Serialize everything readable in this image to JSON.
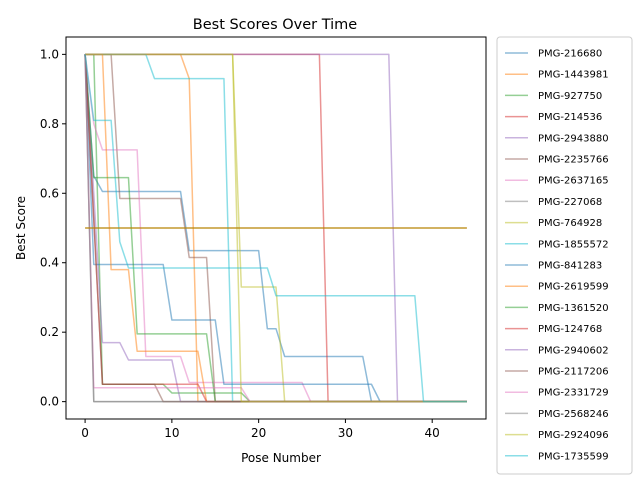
{
  "chart_data": {
    "type": "line",
    "title": "Best Scores Over Time",
    "xlabel": "Pose Number",
    "ylabel": "Best Score",
    "xlim": [
      -2.2,
      46.2
    ],
    "ylim": [
      -0.05,
      1.05
    ],
    "xticks": [
      0,
      10,
      20,
      30,
      40
    ],
    "yticks": [
      0.0,
      0.2,
      0.4,
      0.6,
      0.8,
      1.0
    ],
    "xtick_labels": [
      "0",
      "10",
      "20",
      "30",
      "40"
    ],
    "ytick_labels": [
      "0.0",
      "0.2",
      "0.4",
      "0.6",
      "0.8",
      "1.0"
    ],
    "grid": false,
    "legend_position": "outside-right",
    "reference_line": {
      "y": 0.5,
      "x_range": [
        0,
        44
      ],
      "color": "#b8860b"
    },
    "series": [
      {
        "name": "PMG-216680",
        "color": "#1f77b4",
        "points": [
          [
            0,
            1.0
          ],
          [
            1,
            0.65
          ],
          [
            2,
            0.605
          ],
          [
            11,
            0.605
          ],
          [
            12,
            0.435
          ],
          [
            13,
            0.435
          ],
          [
            20,
            0.435
          ],
          [
            21,
            0.21
          ],
          [
            22,
            0.21
          ],
          [
            23,
            0.13
          ],
          [
            32,
            0.13
          ],
          [
            33,
            0.0
          ],
          [
            44,
            0.0
          ]
        ]
      },
      {
        "name": "PMG-1443981",
        "color": "#ff7f0e",
        "points": [
          [
            0,
            1.0
          ],
          [
            11,
            1.0
          ],
          [
            12,
            0.93
          ],
          [
            13,
            0.0
          ],
          [
            44,
            0.0
          ]
        ]
      },
      {
        "name": "PMG-927750",
        "color": "#2ca02c",
        "points": [
          [
            0,
            1.0
          ],
          [
            1,
            1.0
          ],
          [
            2,
            0.05
          ],
          [
            9,
            0.05
          ],
          [
            10,
            0.025
          ],
          [
            18,
            0.025
          ],
          [
            19,
            0.0
          ],
          [
            44,
            0.0
          ]
        ]
      },
      {
        "name": "PMG-214536",
        "color": "#d62728",
        "points": [
          [
            0,
            1.0
          ],
          [
            27,
            1.0
          ],
          [
            28,
            0.0
          ],
          [
            44,
            0.0
          ]
        ]
      },
      {
        "name": "PMG-2943880",
        "color": "#9467bd",
        "points": [
          [
            0,
            1.0
          ],
          [
            1,
            0.6
          ],
          [
            2,
            0.17
          ],
          [
            4,
            0.17
          ],
          [
            5,
            0.12
          ],
          [
            10,
            0.12
          ],
          [
            11,
            0.0
          ],
          [
            44,
            0.0
          ]
        ]
      },
      {
        "name": "PMG-2235766",
        "color": "#8c564b",
        "points": [
          [
            0,
            1.0
          ],
          [
            3,
            1.0
          ],
          [
            4,
            0.585
          ],
          [
            11,
            0.585
          ],
          [
            12,
            0.415
          ],
          [
            14,
            0.415
          ],
          [
            15,
            0.0
          ],
          [
            44,
            0.0
          ]
        ]
      },
      {
        "name": "PMG-2637165",
        "color": "#e377c2",
        "points": [
          [
            0,
            1.0
          ],
          [
            1,
            0.8
          ],
          [
            2,
            0.725
          ],
          [
            6,
            0.725
          ],
          [
            7,
            0.13
          ],
          [
            11,
            0.13
          ],
          [
            12,
            0.055
          ],
          [
            25,
            0.055
          ],
          [
            26,
            0.0
          ],
          [
            44,
            0.0
          ]
        ]
      },
      {
        "name": "PMG-227068",
        "color": "#7f7f7f",
        "points": [
          [
            0,
            1.0
          ],
          [
            1,
            0.0
          ],
          [
            44,
            0.0
          ]
        ]
      },
      {
        "name": "PMG-764928",
        "color": "#bcbd22",
        "points": [
          [
            0,
            1.0
          ],
          [
            17,
            1.0
          ],
          [
            18,
            0.33
          ],
          [
            22,
            0.33
          ],
          [
            23,
            0.0
          ],
          [
            44,
            0.0
          ]
        ]
      },
      {
        "name": "PMG-1855572",
        "color": "#17becf",
        "points": [
          [
            0,
            1.0
          ],
          [
            7,
            1.0
          ],
          [
            8,
            0.93
          ],
          [
            16,
            0.93
          ],
          [
            17,
            0.0
          ],
          [
            44,
            0.0
          ]
        ]
      },
      {
        "name": "PMG-841283",
        "color": "#1f77b4",
        "points": [
          [
            0,
            1.0
          ],
          [
            1,
            0.395
          ],
          [
            9,
            0.395
          ],
          [
            10,
            0.235
          ],
          [
            15,
            0.235
          ],
          [
            16,
            0.05
          ],
          [
            33,
            0.05
          ],
          [
            34,
            0.0
          ],
          [
            44,
            0.0
          ]
        ]
      },
      {
        "name": "PMG-2619599",
        "color": "#ff7f0e",
        "points": [
          [
            0,
            1.0
          ],
          [
            2,
            1.0
          ],
          [
            3,
            0.38
          ],
          [
            5,
            0.38
          ],
          [
            6,
            0.145
          ],
          [
            13,
            0.145
          ],
          [
            14,
            0.0
          ],
          [
            44,
            0.0
          ]
        ]
      },
      {
        "name": "PMG-1361520",
        "color": "#2ca02c",
        "points": [
          [
            0,
            1.0
          ],
          [
            1,
            0.645
          ],
          [
            5,
            0.645
          ],
          [
            6,
            0.195
          ],
          [
            14,
            0.195
          ],
          [
            15,
            0.0
          ],
          [
            44,
            0.0
          ]
        ]
      },
      {
        "name": "PMG-124768",
        "color": "#d62728",
        "points": [
          [
            0,
            1.0
          ],
          [
            2,
            0.05
          ],
          [
            13,
            0.05
          ],
          [
            14,
            0.0
          ],
          [
            44,
            0.0
          ]
        ]
      },
      {
        "name": "PMG-2940602",
        "color": "#9467bd",
        "points": [
          [
            0,
            1.0
          ],
          [
            35,
            1.0
          ],
          [
            36,
            0.0
          ],
          [
            44,
            0.0
          ]
        ]
      },
      {
        "name": "PMG-2117206",
        "color": "#8c564b",
        "points": [
          [
            0,
            1.0
          ],
          [
            2,
            0.05
          ],
          [
            8,
            0.05
          ],
          [
            9,
            0.0
          ],
          [
            44,
            0.0
          ]
        ]
      },
      {
        "name": "PMG-2331729",
        "color": "#e377c2",
        "points": [
          [
            0,
            1.0
          ],
          [
            1,
            0.04
          ],
          [
            18,
            0.04
          ],
          [
            19,
            0.0
          ],
          [
            44,
            0.0
          ]
        ]
      },
      {
        "name": "PMG-2568246",
        "color": "#7f7f7f",
        "points": [
          [
            0,
            1.0
          ],
          [
            1,
            0.0
          ],
          [
            44,
            0.0
          ]
        ]
      },
      {
        "name": "PMG-2924096",
        "color": "#bcbd22",
        "points": [
          [
            0,
            1.0
          ],
          [
            17,
            1.0
          ],
          [
            18,
            0.0
          ],
          [
            44,
            0.0
          ]
        ]
      },
      {
        "name": "PMG-1735599",
        "color": "#17becf",
        "points": [
          [
            0,
            1.0
          ],
          [
            1,
            0.81
          ],
          [
            3,
            0.81
          ],
          [
            4,
            0.46
          ],
          [
            5,
            0.385
          ],
          [
            21,
            0.385
          ],
          [
            22,
            0.305
          ],
          [
            38,
            0.305
          ],
          [
            39,
            0.0
          ],
          [
            44,
            0.0
          ]
        ]
      }
    ]
  }
}
